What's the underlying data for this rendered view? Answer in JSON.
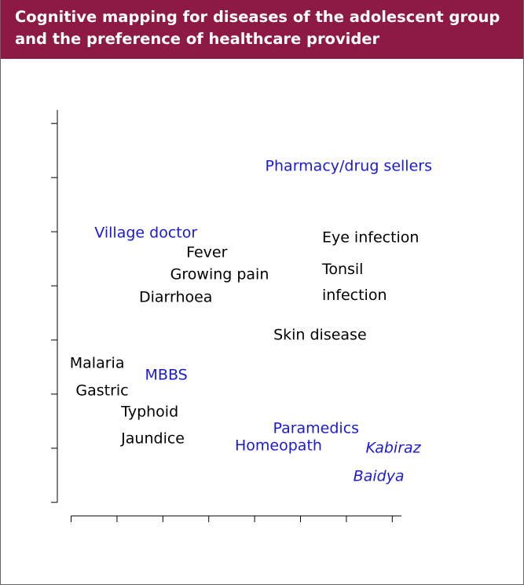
{
  "chart_data": {
    "type": "scatter",
    "title": "Cognitive mapping for diseases of the adolescent group and the preference of healthcare provider",
    "xlim": [
      -0.3,
      7.2
    ],
    "xticks": [
      0,
      1,
      2,
      3,
      4,
      5,
      6,
      7
    ],
    "ylim": [
      -0.25,
      7.25
    ],
    "yticks": [
      0,
      1,
      2,
      3,
      4,
      5,
      6,
      7
    ],
    "series": [
      {
        "color": "#000000",
        "labels": [
          "Eye infection",
          "Fever",
          "Tonsil\ninfection",
          "Growing pain",
          "Diarrhoea",
          "Skin disease",
          "Malaria",
          "Gastric",
          "Typhoid",
          "Jaundice"
        ],
        "x": [
          5.47,
          2.51,
          5.47,
          2.16,
          1.48,
          4.41,
          -0.03,
          0.1,
          1.09,
          1.09
        ],
        "y": [
          4.88,
          4.61,
          4.06,
          4.2,
          3.78,
          3.09,
          2.57,
          2.06,
          1.67,
          1.17
        ],
        "italic": [
          false,
          false,
          false,
          false,
          false,
          false,
          false,
          false,
          false,
          false
        ]
      },
      {
        "color": "#1a1ad6",
        "labels": [
          "Pharmacy/drug sellers",
          "Village doctor",
          "MBBS",
          "Paramedics",
          "Homeopath",
          "Kabiraz",
          "Baidya"
        ],
        "x": [
          4.23,
          0.51,
          1.61,
          4.4,
          3.57,
          6.42,
          6.15
        ],
        "y": [
          6.2,
          4.97,
          2.35,
          1.36,
          1.04,
          1.0,
          0.48
        ],
        "italic": [
          false,
          false,
          false,
          false,
          false,
          true,
          true
        ]
      }
    ]
  }
}
